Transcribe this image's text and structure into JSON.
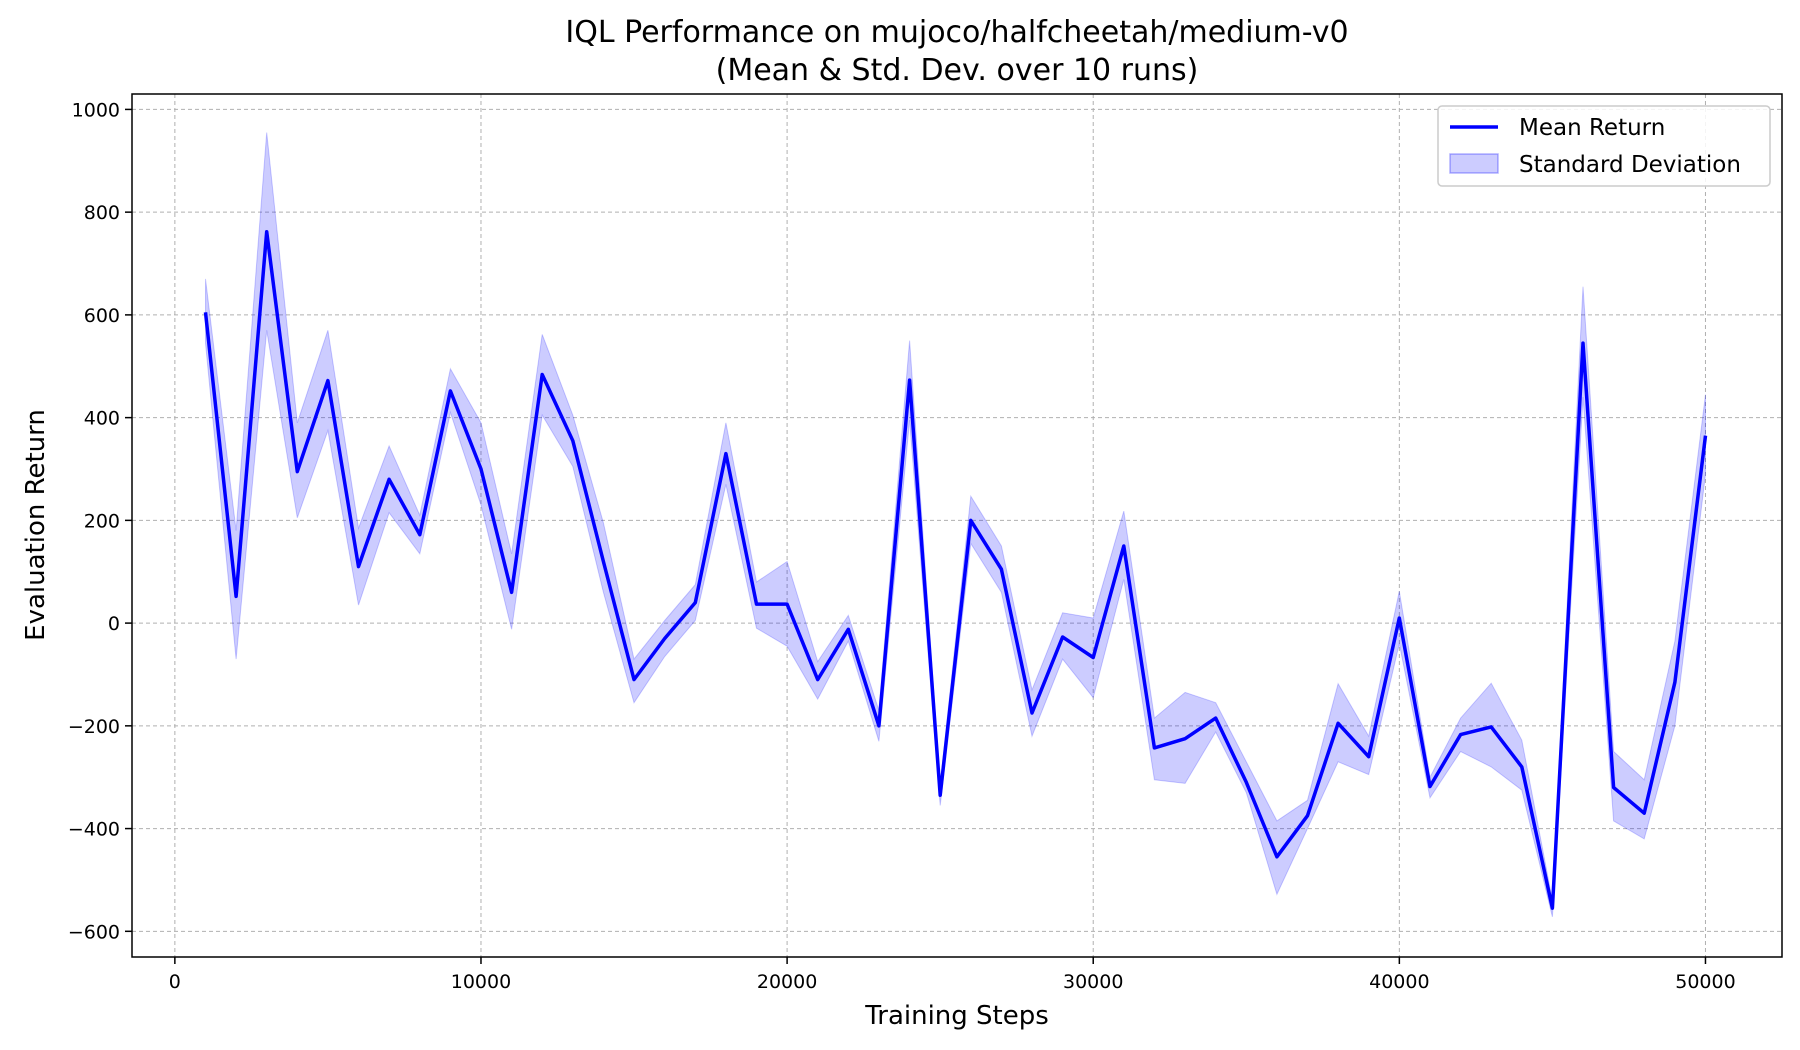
{
  "chart_data": {
    "type": "line",
    "title": "IQL Performance on mujoco/halfcheetah/medium-v0",
    "subtitle": "(Mean & Std. Dev. over 10 runs)",
    "xlabel": "Training Steps",
    "ylabel": "Evaluation Return",
    "xlim": [
      -1400,
      52500
    ],
    "ylim": [
      -650,
      1030
    ],
    "x_ticks": [
      0,
      10000,
      20000,
      30000,
      40000,
      50000
    ],
    "x_tick_labels": [
      "0",
      "10000",
      "20000",
      "30000",
      "40000",
      "50000"
    ],
    "y_ticks": [
      -600,
      -400,
      -200,
      0,
      200,
      400,
      600,
      800,
      1000
    ],
    "y_tick_labels": [
      "−600",
      "−400",
      "−200",
      "0",
      "200",
      "400",
      "600",
      "800",
      "1000"
    ],
    "grid": true,
    "legend_position": "top-right",
    "colors": {
      "line": "#0000ff",
      "band": "#0000ff",
      "grid": "#b0b0b0"
    },
    "x": [
      1000,
      2000,
      3000,
      4000,
      5000,
      6000,
      7000,
      8000,
      9000,
      10000,
      11000,
      12000,
      13000,
      14000,
      15000,
      16000,
      17000,
      18000,
      19000,
      20000,
      21000,
      22000,
      23000,
      24000,
      25000,
      26000,
      27000,
      28000,
      29000,
      30000,
      31000,
      32000,
      33000,
      34000,
      35000,
      36000,
      37000,
      38000,
      39000,
      40000,
      41000,
      42000,
      43000,
      44000,
      45000,
      46000,
      47000,
      48000,
      49000,
      50000
    ],
    "series": [
      {
        "name": "Mean Return",
        "values": [
          605,
          52,
          762,
          295,
          472,
          110,
          280,
          172,
          452,
          300,
          60,
          484,
          355,
          120,
          -110,
          -30,
          40,
          330,
          37,
          37,
          -110,
          -12,
          -200,
          473,
          -335,
          200,
          105,
          -175,
          -27,
          -67,
          150,
          -243,
          -225,
          -185,
          -310,
          -455,
          -375,
          -195,
          -260,
          10,
          -318,
          -217,
          -202,
          -280,
          -555,
          545,
          -320,
          -370,
          -115,
          365
        ]
      },
      {
        "name": "Standard Deviation",
        "lower": [
          545,
          -70,
          570,
          205,
          375,
          35,
          215,
          135,
          410,
          230,
          -12,
          405,
          305,
          60,
          -155,
          -65,
          5,
          270,
          -10,
          -45,
          -148,
          -35,
          -230,
          395,
          -355,
          155,
          60,
          -220,
          -70,
          -145,
          85,
          -305,
          -312,
          -212,
          -330,
          -528,
          -400,
          -270,
          -295,
          -40,
          -340,
          -250,
          -280,
          -325,
          -572,
          440,
          -385,
          -420,
          -200,
          290
        ],
        "upper": [
          670,
          180,
          955,
          390,
          570,
          185,
          345,
          210,
          495,
          390,
          135,
          562,
          405,
          195,
          -70,
          5,
          75,
          390,
          80,
          120,
          -75,
          15,
          -170,
          550,
          -315,
          247,
          150,
          -130,
          20,
          10,
          218,
          -185,
          -135,
          -155,
          -270,
          -385,
          -345,
          -118,
          -220,
          62,
          -300,
          -185,
          -117,
          -228,
          -540,
          655,
          -250,
          -305,
          -35,
          445
        ]
      }
    ]
  }
}
